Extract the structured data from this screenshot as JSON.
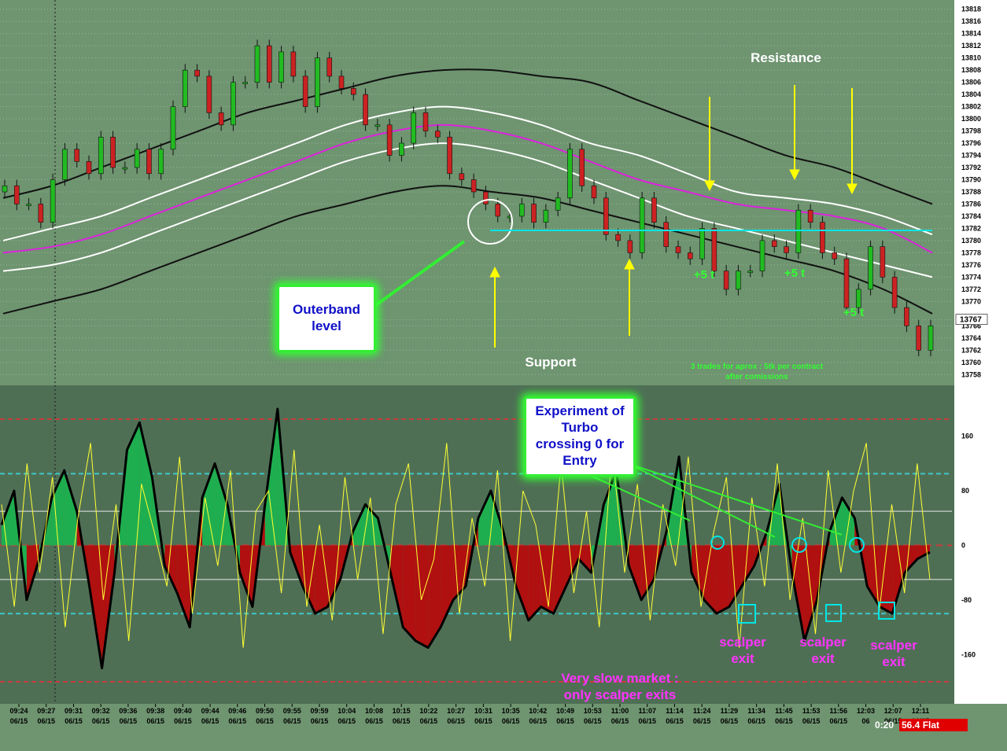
{
  "colors": {
    "background": "#6e9470",
    "oscillator_background": "#4f6f55",
    "candle_up": "#22bb22",
    "candle_down": "#cc2222",
    "outer_band": "#111111",
    "mid_band": "#ffffff",
    "center_line": "#dd22dd",
    "support_level": "#00e5e5",
    "arrow": "#ffff00",
    "positive_fill": "#1fae4f",
    "negative_fill": "#b01010",
    "turbo_line": "#ffff33",
    "annotation_magenta": "#ff33ff",
    "annotation_green": "#33ff33",
    "callout_text": "#1010c8"
  },
  "chart_data": [
    {
      "type": "candlestick",
      "title": "",
      "y_ticks": [
        13818,
        13816,
        13814,
        13812,
        13810,
        13808,
        13806,
        13804,
        13802,
        13800,
        13798,
        13796,
        13794,
        13792,
        13790,
        13788,
        13786,
        13784,
        13782,
        13780,
        13778,
        13776,
        13774,
        13772,
        13770,
        13767,
        13766,
        13764,
        13762,
        13760,
        13758
      ],
      "ylim": [
        13757,
        13819
      ],
      "last_price": 13767,
      "support_level": 13781,
      "series": [
        {
          "kind": "close",
          "values": [
            13789,
            13786,
            13786,
            13783,
            13790,
            13795,
            13793,
            13791,
            13797,
            13792,
            13792,
            13795,
            13791,
            13795,
            13802,
            13808,
            13807,
            13801,
            13799,
            13806,
            13806,
            13812,
            13806,
            13811,
            13807,
            13802,
            13810,
            13807,
            13805,
            13804,
            13799,
            13799,
            13794,
            13796,
            13801,
            13798,
            13797,
            13791,
            13790,
            13788,
            13786,
            13784,
            13784,
            13786,
            13783,
            13785,
            13787,
            13795,
            13789,
            13787,
            13781,
            13780,
            13778,
            13787,
            13783,
            13779,
            13778,
            13777,
            13782,
            13775,
            13772,
            13775,
            13775,
            13780,
            13779,
            13778,
            13785,
            13783,
            13778,
            13777,
            13769,
            13772,
            13779,
            13774,
            13769,
            13766,
            13762,
            13766
          ]
        },
        {
          "kind": "outer_band_upper",
          "values": [
            13787,
            13789,
            13792,
            13795,
            13798,
            13801,
            13803,
            13805,
            13807,
            13808,
            13808,
            13807,
            13806,
            13803,
            13800,
            13797,
            13794,
            13792,
            13789,
            13786
          ]
        },
        {
          "kind": "mid_band_upper",
          "values": [
            13780,
            13782,
            13784,
            13787,
            13790,
            13793,
            13796,
            13799,
            13801,
            13802,
            13801,
            13799,
            13796,
            13794,
            13791,
            13788,
            13787,
            13786,
            13784,
            13781
          ]
        },
        {
          "kind": "center_line",
          "values": [
            13778,
            13779,
            13781,
            13784,
            13787,
            13790,
            13793,
            13796,
            13798,
            13799,
            13798,
            13796,
            13793,
            13790,
            13788,
            13786,
            13785,
            13784,
            13782,
            13778
          ]
        },
        {
          "kind": "mid_band_lower",
          "values": [
            13775,
            13776,
            13778,
            13781,
            13784,
            13787,
            13790,
            13793,
            13795,
            13796,
            13795,
            13793,
            13790,
            13787,
            13784,
            13782,
            13780,
            13778,
            13776,
            13774
          ]
        },
        {
          "kind": "outer_band_lower",
          "values": [
            13768,
            13770,
            13772,
            13775,
            13778,
            13781,
            13784,
            13786,
            13788,
            13789,
            13788,
            13787,
            13785,
            13783,
            13781,
            13779,
            13777,
            13775,
            13772,
            13768
          ]
        }
      ]
    },
    {
      "type": "area",
      "title": "",
      "y_ticks": [
        160,
        80,
        0,
        -80,
        -160
      ],
      "ylim": [
        -230,
        230
      ],
      "levels": [
        185,
        105,
        50,
        -50,
        -100,
        -200
      ],
      "series": [
        {
          "kind": "histogram",
          "values": [
            30,
            80,
            -80,
            -20,
            70,
            110,
            50,
            -60,
            -180,
            -40,
            140,
            180,
            100,
            -30,
            -70,
            -120,
            70,
            120,
            60,
            -40,
            -90,
            60,
            200,
            -10,
            -60,
            -100,
            -90,
            -50,
            20,
            60,
            40,
            -40,
            -120,
            -140,
            -150,
            -120,
            -80,
            -60,
            40,
            80,
            20,
            -60,
            -110,
            -90,
            -100,
            -60,
            -20,
            -40,
            60,
            110,
            -30,
            -80,
            -50,
            20,
            130,
            -40,
            -80,
            -100,
            -90,
            -60,
            -30,
            20,
            90,
            -40,
            -140,
            -80,
            20,
            70,
            40,
            -60,
            -90,
            -100,
            -40,
            -20,
            -10
          ]
        },
        {
          "kind": "turbo",
          "values": [
            60,
            -90,
            120,
            -40,
            100,
            -120,
            40,
            150,
            -80,
            60,
            -140,
            90,
            20,
            -60,
            130,
            -100,
            70,
            -30,
            110,
            -150,
            50,
            80,
            -70,
            140,
            -90,
            30,
            -110,
            100,
            -50,
            70,
            -130,
            60,
            120,
            -80,
            -20,
            150,
            -100,
            40,
            -60,
            110,
            -140,
            80,
            30,
            -90,
            120,
            -70,
            50,
            -120,
            140,
            -40,
            90,
            -110,
            60,
            -30,
            130,
            -90,
            20,
            100,
            -150,
            70,
            -60,
            120,
            -80,
            40,
            -130,
            110,
            -40,
            80,
            150,
            -100,
            60,
            -70,
            120,
            -50
          ]
        }
      ]
    }
  ],
  "x_axis": {
    "times": [
      "09:24",
      "09:27",
      "09:31",
      "09:32",
      "09:36",
      "09:38",
      "09:40",
      "09:44",
      "09:46",
      "09:50",
      "09:55",
      "09:59",
      "10:04",
      "10:08",
      "10:15",
      "10:22",
      "10:27",
      "10:31",
      "10:35",
      "10:42",
      "10:49",
      "10:53",
      "11:00",
      "11:07",
      "11:14",
      "11:24",
      "11:29",
      "11:34",
      "11:45",
      "11:53",
      "11:56",
      "12:03",
      "12:07",
      "12:11"
    ],
    "dates": [
      "06/15",
      "06/15",
      "06/15",
      "06/15",
      "06/15",
      "06/15",
      "06/15",
      "06/15",
      "06/15",
      "06/15",
      "06/15",
      "06/15",
      "06/15",
      "06/15",
      "06/15",
      "06/15",
      "06/15",
      "06/15",
      "06/15",
      "06/15",
      "06/15",
      "06/15",
      "06/15",
      "06/15",
      "06/15",
      "06/15",
      "06/15",
      "06/15",
      "06/15",
      "06/15",
      "06/15",
      "06",
      "06/15",
      "06/15"
    ]
  },
  "annotations": {
    "resistance": "Resistance",
    "support": "Support",
    "outerband_line1": "Outerband",
    "outerband_line2": "level",
    "plus_ticks_1": "+5 t",
    "plus_ticks_2": "+5 t",
    "plus_ticks_3": "+5 t",
    "trades_note_line1": "3 trades for aprox : 5tk per contract",
    "trades_note_line2": "after comissions",
    "experiment_line1": "Experiment of",
    "experiment_line2": "Turbo",
    "experiment_line3": "crossing 0 for",
    "experiment_line4": "Entry",
    "scalper_line1": "scalper",
    "scalper_line2": "exit",
    "slow_market_line1": "Very slow market :",
    "slow_market_line2": "only scalper exits"
  },
  "status": {
    "time": "0:20",
    "position": "56.4 Flat"
  }
}
